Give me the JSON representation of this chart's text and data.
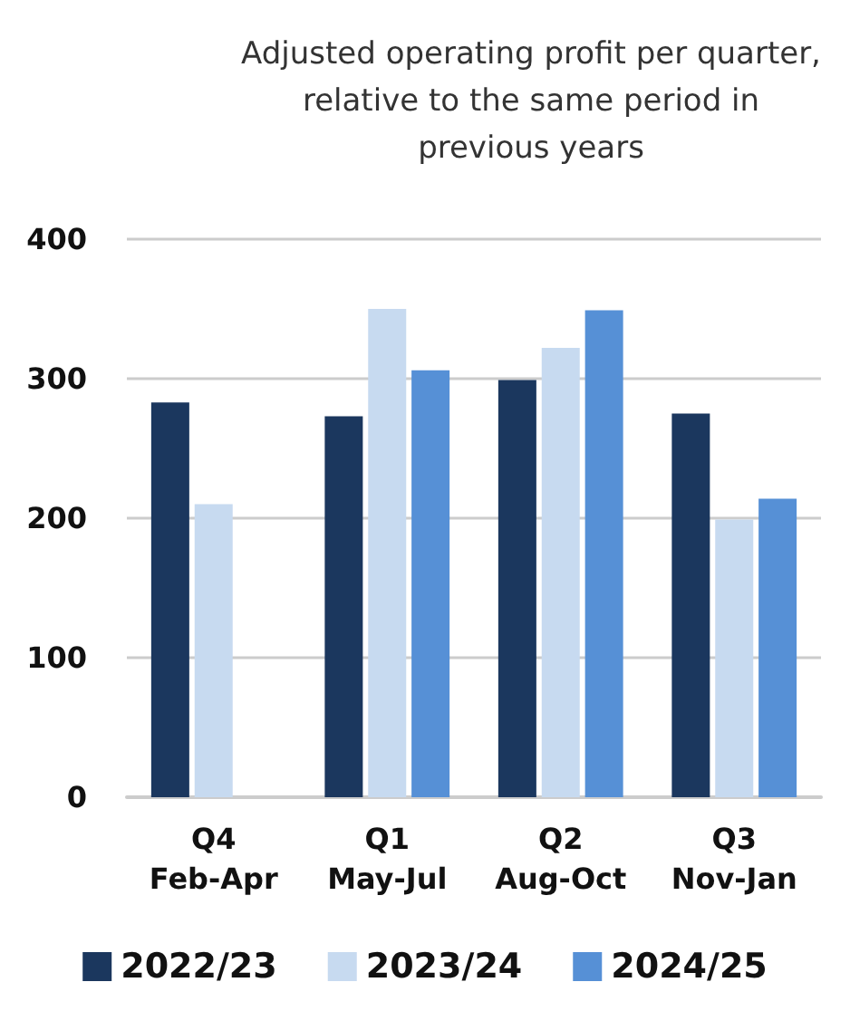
{
  "chart_data": {
    "type": "bar",
    "title": "Adjusted operating profit per quarter,\nrelative to the same period in\nprevious years",
    "categories": [
      "Q4\nFeb-Apr",
      "Q1\nMay-Jul",
      "Q2\nAug-Oct",
      "Q3\nNov-Jan"
    ],
    "series": [
      {
        "name": "2022/23",
        "color": "#1b375e",
        "values": [
          283,
          273,
          299,
          275
        ]
      },
      {
        "name": "2023/24",
        "color": "#c7daf0",
        "values": [
          210,
          350,
          322,
          199
        ]
      },
      {
        "name": "2024/25",
        "color": "#5690d6",
        "values": [
          null,
          306,
          349,
          214
        ]
      }
    ],
    "ylim": [
      0,
      400
    ],
    "yticks": [
      0,
      100,
      200,
      300,
      400
    ],
    "grid": "y",
    "legend": "bottom"
  }
}
